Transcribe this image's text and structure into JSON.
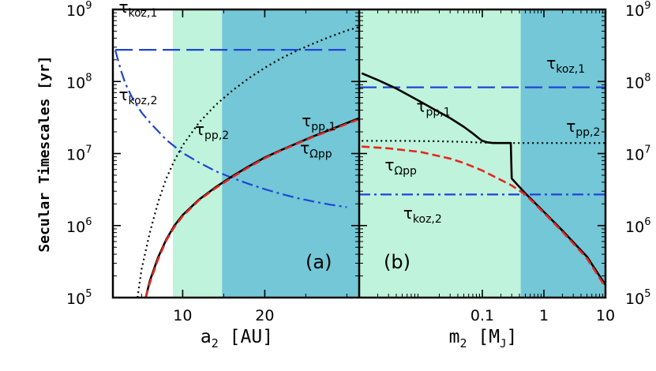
{
  "chart_data": [
    {
      "panel": "a",
      "type": "line",
      "panel_label": "(a)",
      "xlabel": "a",
      "xlabel_sub": "2",
      "xlabel_unit": "[AU]",
      "ylabel": "Secular Timescales [yr]",
      "xscale": "linear",
      "yscale": "log",
      "xlim": [
        1.5,
        31.5
      ],
      "ylim": [
        100000,
        1000000000
      ],
      "xticks": [
        10,
        20
      ],
      "xticklabels": [
        "10",
        "20"
      ],
      "ytick_exponents": [
        5,
        6,
        7,
        8,
        9
      ],
      "ytick_base": "10",
      "shaded_regions": [
        {
          "x0": 8.8,
          "x1": 14.8,
          "color": "#bff3dc"
        },
        {
          "x0": 14.8,
          "x1": 31.5,
          "color": "#73c7d6"
        }
      ],
      "series": [
        {
          "name": "τ_pp,1",
          "style": "solid",
          "color": "#000000",
          "x": [
            5.5,
            6,
            7,
            8,
            9,
            10,
            12,
            14,
            16,
            18,
            20,
            22,
            24,
            26,
            28,
            30,
            31.5
          ],
          "y": [
            100000,
            170000,
            360000,
            640000,
            1000000,
            1400000,
            2300000,
            3400000,
            4800000,
            6600000,
            8800000,
            11200000,
            14000000,
            17500000,
            21500000,
            26500000,
            31000000
          ]
        },
        {
          "name": "τ_Ωpp",
          "style": "dashed",
          "color": "#e52620",
          "x": [
            5.5,
            6,
            7,
            8,
            9,
            10,
            12,
            14,
            16,
            18,
            20,
            22,
            24,
            26,
            28,
            30,
            31.5
          ],
          "y": [
            100000,
            160000,
            340000,
            620000,
            960000,
            1350000,
            2250000,
            3300000,
            4650000,
            6400000,
            8600000,
            11000000,
            13800000,
            17200000,
            21000000,
            25800000,
            30000000
          ]
        },
        {
          "name": "τ_pp,2",
          "style": "dotted",
          "color": "#000000",
          "x": [
            4.5,
            5,
            6,
            7,
            8,
            9,
            10,
            12,
            14,
            16,
            18,
            20,
            22,
            24,
            26,
            28,
            30,
            31.5
          ],
          "y": [
            100000,
            250000,
            800000,
            2100000,
            4500000,
            8000000,
            13000000,
            27000000,
            47000000,
            74000000,
            110000000,
            155000000,
            210000000,
            270000000,
            340000000,
            420000000,
            510000000,
            570000000
          ]
        },
        {
          "name": "τ_koz,1",
          "style": "long-dashed",
          "color": "#1f44d6",
          "x": [
            1.8,
            30
          ],
          "y": [
            275000000,
            275000000
          ]
        },
        {
          "name": "τ_koz,2",
          "style": "dash-dot",
          "color": "#1f44d6",
          "x": [
            1.8,
            2.5,
            3,
            4,
            5,
            6,
            8,
            10,
            12,
            14,
            16,
            18,
            20,
            22,
            24,
            26,
            28,
            30
          ],
          "y": [
            270000000,
            140000000,
            95000000,
            55000000,
            37000000,
            27000000,
            15500000,
            10200000,
            7500000,
            5700000,
            4600000,
            3800000,
            3200000,
            2750000,
            2400000,
            2150000,
            1950000,
            1800000
          ]
        }
      ],
      "annotations": [
        {
          "text": "τ",
          "sub": "koz,1",
          "series": "τ_koz,1"
        },
        {
          "text": "τ",
          "sub": "koz,2",
          "series": "τ_koz,2"
        },
        {
          "text": "τ",
          "sub": "pp,2",
          "series": "τ_pp,2"
        },
        {
          "text": "τ",
          "sub": "pp,1",
          "series": "τ_pp,1"
        },
        {
          "text": "τ",
          "sub": "Ωpp",
          "series": "τ_Ωpp"
        }
      ]
    },
    {
      "panel": "b",
      "type": "line",
      "panel_label": "(b)",
      "xlabel": "m",
      "xlabel_sub": "2",
      "xlabel_unit": "[M",
      "xlabel_unit_sub": "J",
      "xlabel_unit_end": "]",
      "xscale": "log",
      "yscale": "log",
      "xlim": [
        0.001,
        10
      ],
      "ylim": [
        100000,
        1000000000
      ],
      "xticks": [
        0.1,
        1,
        10
      ],
      "xticklabels": [
        "0.1",
        "1",
        "10"
      ],
      "ytick_exponents": [
        5,
        6,
        7,
        8,
        9
      ],
      "ytick_base": "10",
      "shaded_regions": [
        {
          "x0": 0.001,
          "x1": 0.42,
          "color": "#bff3dc"
        },
        {
          "x0": 0.42,
          "x1": 10,
          "color": "#73c7d6"
        }
      ],
      "series": [
        {
          "name": "τ_pp,1",
          "style": "solid",
          "color": "#000000",
          "x": [
            0.0011,
            0.002,
            0.004,
            0.008,
            0.015,
            0.03,
            0.05,
            0.07,
            0.09,
            0.1,
            0.12,
            0.15,
            0.2,
            0.29,
            0.3,
            0.5,
            1,
            2,
            5,
            10
          ],
          "y": [
            130000000,
            105000000,
            80000000,
            58000000,
            43000000,
            31000000,
            23500000,
            19000000,
            16000000,
            15000000,
            14300000,
            14000000,
            14000000,
            14000000,
            4500000,
            2800000,
            1550000,
            850000,
            370000,
            150000
          ]
        },
        {
          "name": "τ_Ωpp",
          "style": "dashed",
          "color": "#e52620",
          "x": [
            0.0011,
            0.003,
            0.01,
            0.03,
            0.05,
            0.1,
            0.2,
            0.3,
            0.5,
            1,
            2,
            5,
            10
          ],
          "y": [
            12500000,
            11800000,
            10500000,
            8500000,
            7400000,
            5800000,
            4300000,
            3600000,
            2700000,
            1500000,
            820000,
            350000,
            140000
          ]
        },
        {
          "name": "τ_pp,2",
          "style": "dotted",
          "color": "#000000",
          "x": [
            0.0011,
            0.005,
            0.02,
            0.05,
            0.1,
            0.2,
            0.5,
            1,
            5,
            10
          ],
          "y": [
            15000000,
            15000000,
            14800000,
            14500000,
            14200000,
            14000000,
            14000000,
            14000000,
            14000000,
            14000000
          ]
        },
        {
          "name": "τ_koz,1",
          "style": "long-dashed",
          "color": "#1f44d6",
          "x": [
            0.001,
            10
          ],
          "y": [
            83000000,
            83000000
          ]
        },
        {
          "name": "τ_koz,2",
          "style": "dash-dot",
          "color": "#1f44d6",
          "x": [
            0.001,
            10
          ],
          "y": [
            2700000,
            2700000
          ]
        }
      ],
      "annotations": [
        {
          "text": "τ",
          "sub": "koz,1",
          "series": "τ_koz,1"
        },
        {
          "text": "τ",
          "sub": "pp,1",
          "series": "τ_pp,1"
        },
        {
          "text": "τ",
          "sub": "pp,2",
          "series": "τ_pp,2"
        },
        {
          "text": "τ",
          "sub": "Ωpp",
          "series": "τ_Ωpp"
        },
        {
          "text": "τ",
          "sub": "koz,2",
          "series": "τ_koz,2"
        }
      ]
    }
  ]
}
